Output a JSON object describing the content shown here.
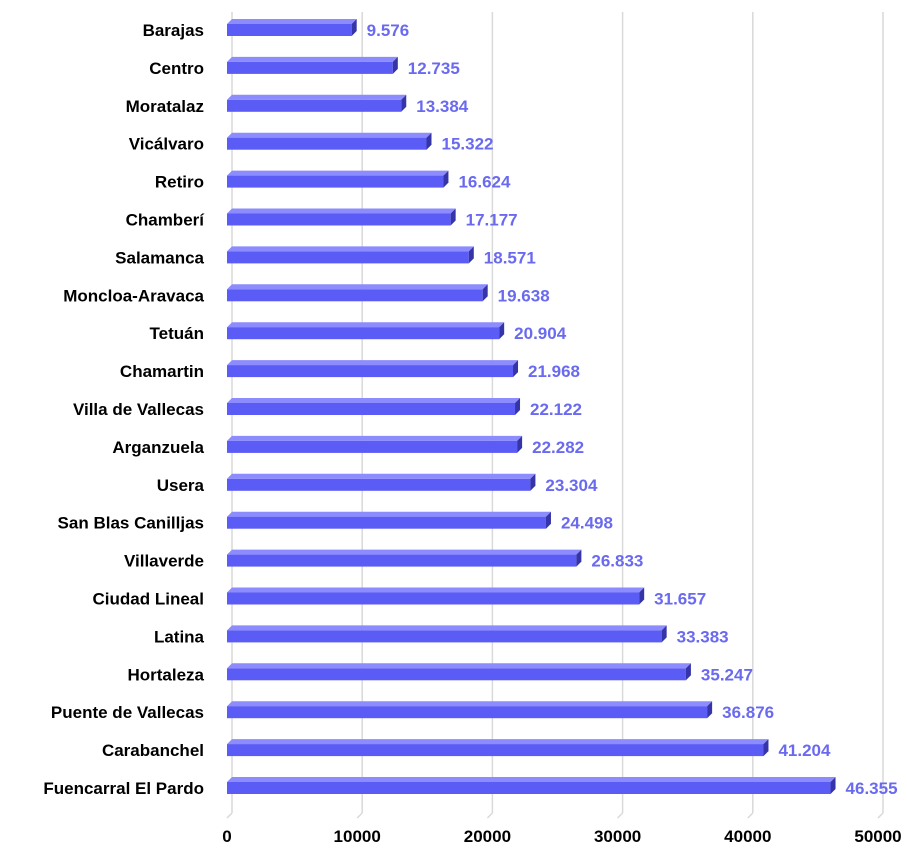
{
  "chart_data": {
    "type": "bar",
    "orientation": "horizontal",
    "title": "",
    "xlabel": "",
    "ylabel": "",
    "xlim": [
      0,
      50000
    ],
    "x_ticks": [
      "0",
      "10000",
      "20000",
      "30000",
      "40000",
      "50000"
    ],
    "grid": "vertical",
    "legend": "none",
    "colors": {
      "bar": "#5b5bf5",
      "bar_dark": "#3535a8",
      "bar_top": "#8c8cff",
      "label": "#6a6af0",
      "grid": "#d9d9d9"
    },
    "categories": [
      "Barajas",
      "Centro",
      "Moratalaz",
      "Vicálvaro",
      "Retiro",
      "Chamberí",
      "Salamanca",
      "Moncloa-Aravaca",
      "Tetuán",
      "Chamartin",
      "Villa de Vallecas",
      "Arganzuela",
      "Usera",
      "San Blas Canilljas",
      "Villaverde",
      "Ciudad Lineal",
      "Latina",
      "Hortaleza",
      "Puente de Vallecas",
      "Carabanchel",
      "Fuencarral El Pardo"
    ],
    "values": [
      9576,
      12735,
      13384,
      15322,
      16624,
      17177,
      18571,
      19638,
      20904,
      21968,
      22122,
      22282,
      23304,
      24498,
      26833,
      31657,
      33383,
      35247,
      36876,
      41204,
      46355
    ],
    "value_labels": [
      "9.576",
      "12.735",
      "13.384",
      "15.322",
      "16.624",
      "17.177",
      "18.571",
      "19.638",
      "20.904",
      "21.968",
      "22.122",
      "22.282",
      "23.304",
      "24.498",
      "26.833",
      "31.657",
      "33.383",
      "35.247",
      "36.876",
      "41.204",
      "46.355"
    ]
  }
}
